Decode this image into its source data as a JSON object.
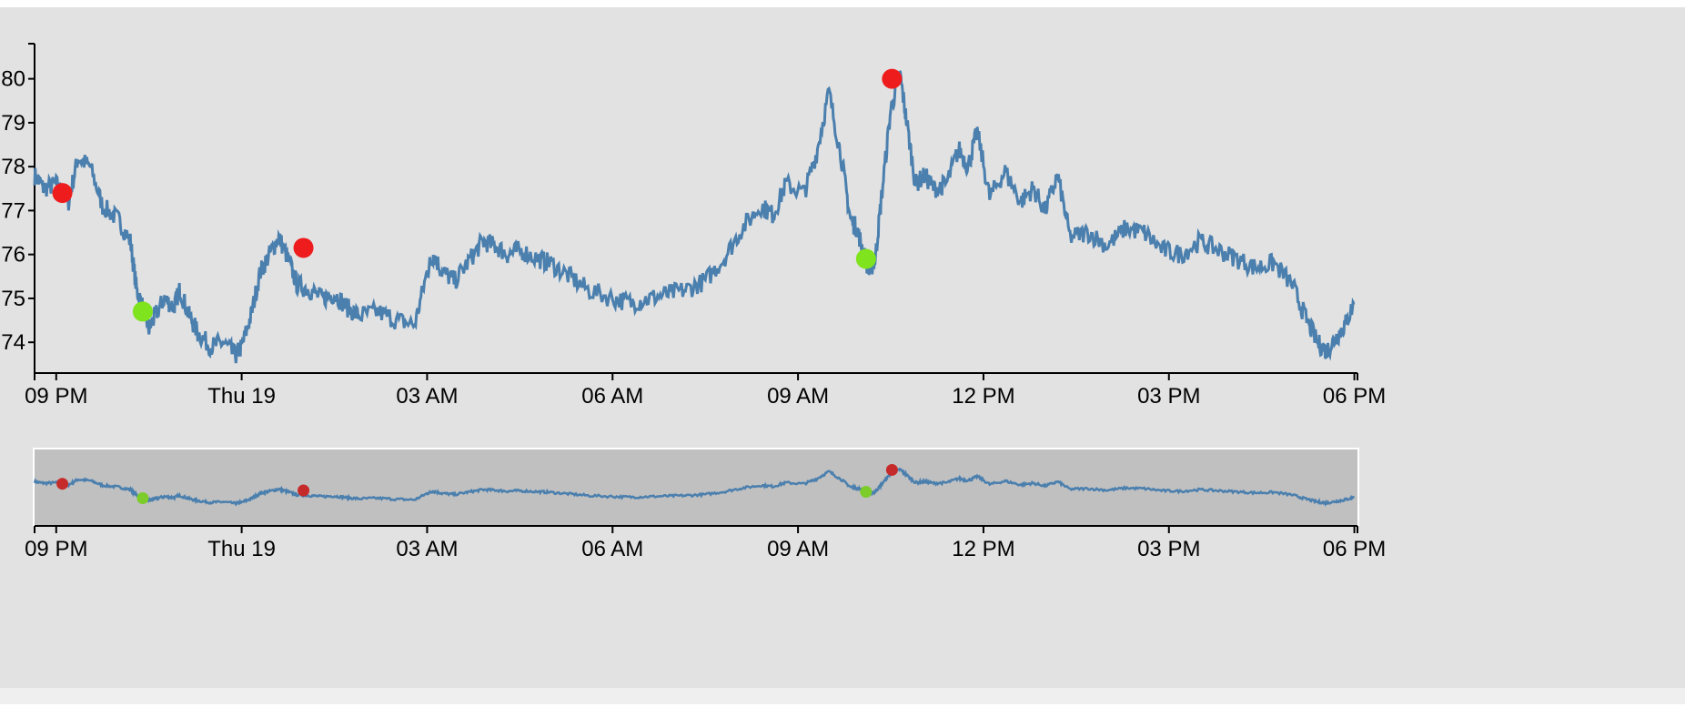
{
  "chart_data": [
    {
      "type": "line",
      "title": "",
      "xlabel": "",
      "ylabel": "",
      "x_ticks": [
        "09 PM",
        "Thu 19",
        "03 AM",
        "06 AM",
        "09 AM",
        "12 PM",
        "03 PM",
        "06 PM"
      ],
      "x_tick_hours": [
        0,
        3,
        6,
        9,
        12,
        15,
        18,
        21
      ],
      "xlim": [
        -0.35,
        21.05
      ],
      "y_ticks": [
        "74",
        "75",
        "76",
        "77",
        "78",
        "79",
        "80"
      ],
      "y_tick_values": [
        74,
        75,
        76,
        77,
        78,
        79,
        80
      ],
      "ylim": [
        73.3,
        80.8
      ],
      "line_color": "#4a7fae",
      "series": [
        {
          "name": "",
          "x": [
            -0.35,
            -0.2,
            0.0,
            0.2,
            0.35,
            0.55,
            0.75,
            1.0,
            1.2,
            1.3,
            1.4,
            1.5,
            1.6,
            1.75,
            1.9,
            2.0,
            2.15,
            2.3,
            2.5,
            2.7,
            2.9,
            3.0,
            3.15,
            3.3,
            3.45,
            3.6,
            3.75,
            3.9,
            4.1,
            4.3,
            4.5,
            4.7,
            4.9,
            5.2,
            5.5,
            5.8,
            6.0,
            6.1,
            6.25,
            6.45,
            6.7,
            6.9,
            7.1,
            7.3,
            7.5,
            7.8,
            8.0,
            8.3,
            8.6,
            9.0,
            9.3,
            9.6,
            9.9,
            10.2,
            10.5,
            10.8,
            11.1,
            11.4,
            11.6,
            11.8,
            12.1,
            12.3,
            12.5,
            12.7,
            12.85,
            12.95,
            13.05,
            13.15,
            13.25,
            13.35,
            13.5,
            13.65,
            13.75,
            13.9,
            14.05,
            14.2,
            14.4,
            14.6,
            14.75,
            14.9,
            15.1,
            15.35,
            15.6,
            15.8,
            16.0,
            16.2,
            16.4,
            16.7,
            17.0,
            17.3,
            17.6,
            17.9,
            18.2,
            18.5,
            18.8,
            19.1,
            19.4,
            19.7,
            20.0,
            20.2,
            20.4,
            20.55,
            20.7,
            20.85,
            21.0
          ],
          "values": [
            77.8,
            77.5,
            77.6,
            77.2,
            78.2,
            78.0,
            77.1,
            76.8,
            76.3,
            75.2,
            74.8,
            74.3,
            74.6,
            75.0,
            74.8,
            75.2,
            74.6,
            74.2,
            73.9,
            74.0,
            73.7,
            73.9,
            74.6,
            75.6,
            76.0,
            76.4,
            75.9,
            75.3,
            75.2,
            75.0,
            75.1,
            74.8,
            74.6,
            74.7,
            74.5,
            74.4,
            75.6,
            76.0,
            75.6,
            75.4,
            75.9,
            76.3,
            76.2,
            76.0,
            76.1,
            75.9,
            75.8,
            75.5,
            75.2,
            75.0,
            74.9,
            75.0,
            75.1,
            75.2,
            75.4,
            75.9,
            76.6,
            77.1,
            76.9,
            77.6,
            77.4,
            78.3,
            79.7,
            78.2,
            76.8,
            76.6,
            76.1,
            75.6,
            75.9,
            77.3,
            79.3,
            80.1,
            79.1,
            77.6,
            77.8,
            77.5,
            77.6,
            78.4,
            78.0,
            78.8,
            77.3,
            77.9,
            77.2,
            77.5,
            77.0,
            77.8,
            76.4,
            76.5,
            76.2,
            76.6,
            76.5,
            76.1,
            76.0,
            76.3,
            76.1,
            75.9,
            75.7,
            75.8,
            75.3,
            74.6,
            74.0,
            73.8,
            74.1,
            74.4,
            74.9
          ]
        }
      ],
      "markers": [
        {
          "x": 0.1,
          "y": 77.4,
          "color": "#ee1c1c"
        },
        {
          "x": 1.4,
          "y": 74.7,
          "color": "#7fe31e"
        },
        {
          "x": 4.0,
          "y": 76.15,
          "color": "#ee1c1c"
        },
        {
          "x": 13.1,
          "y": 75.9,
          "color": "#7fe31e"
        },
        {
          "x": 13.52,
          "y": 80.0,
          "color": "#ee1c1c"
        }
      ]
    },
    {
      "type": "line",
      "title": "",
      "x_ticks": [
        "09 PM",
        "Thu 19",
        "03 AM",
        "06 AM",
        "09 AM",
        "12 PM",
        "03 PM",
        "06 PM"
      ],
      "x_tick_hours": [
        0,
        3,
        6,
        9,
        12,
        15,
        18,
        21
      ],
      "xlim": [
        -0.35,
        21.05
      ],
      "ylim": [
        69.5,
        84.0
      ],
      "line_color": "#4a7fae",
      "marker_colors": {
        "red": "#c62b2b",
        "green": "#7ccc2a"
      },
      "brush_color": "#c0c0c0"
    }
  ]
}
